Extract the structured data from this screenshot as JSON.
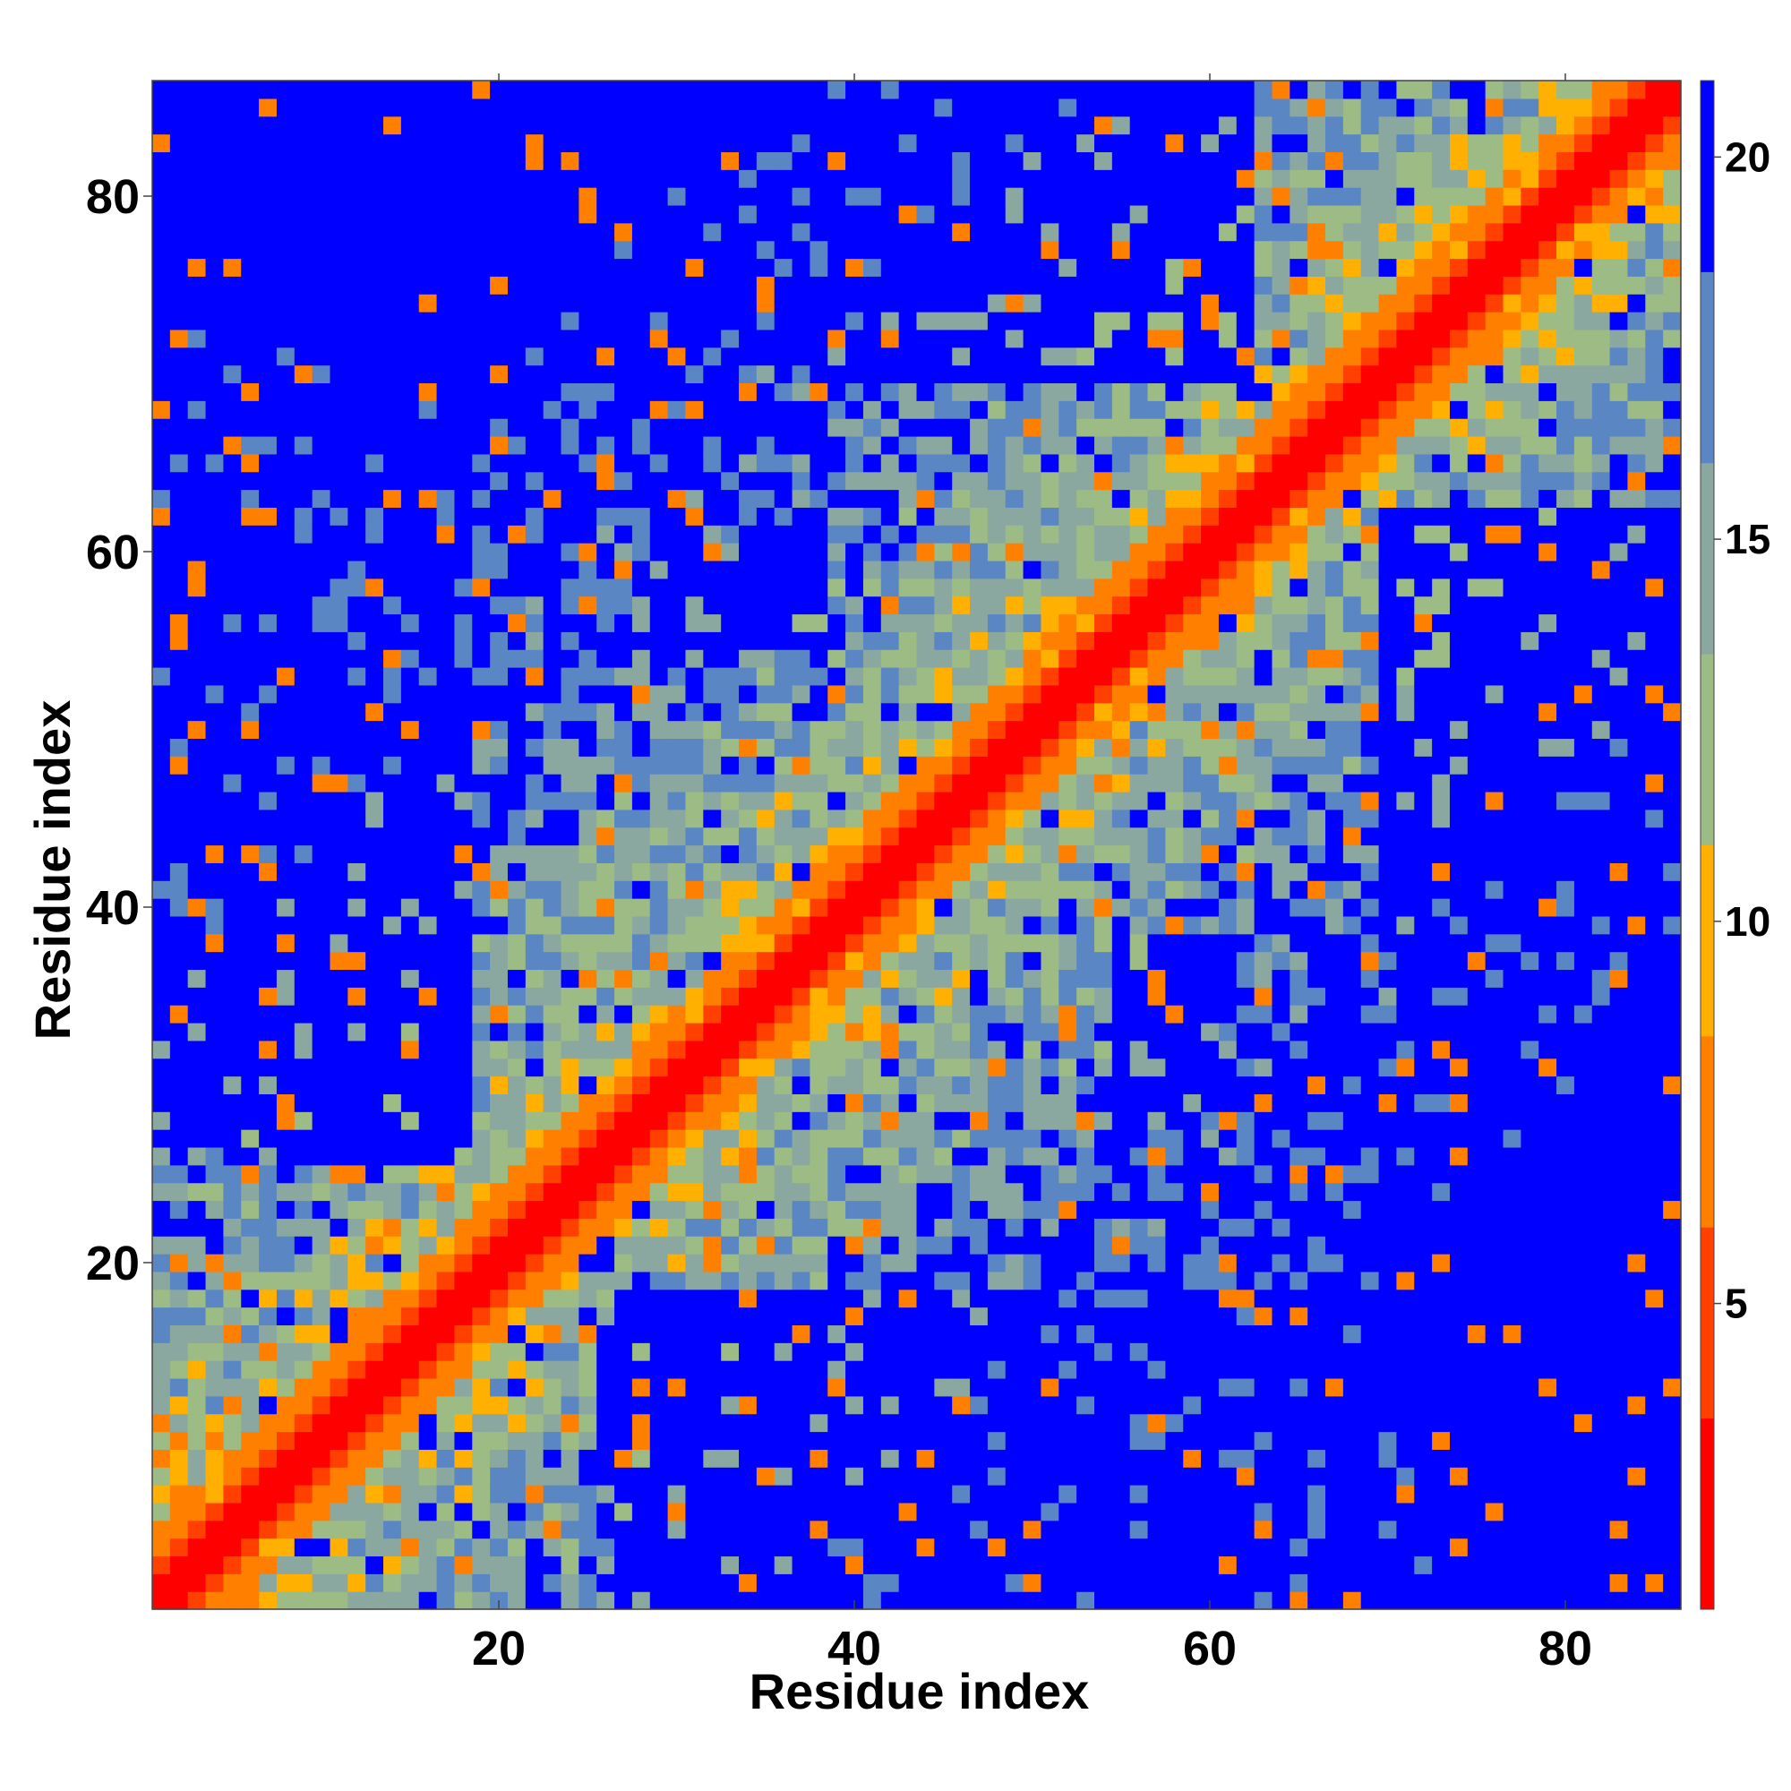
{
  "chart_data": {
    "type": "heatmap",
    "title": "",
    "xlabel": "Residue index",
    "ylabel": "Residue index",
    "n_residues": 86,
    "xlim": [
      1,
      86
    ],
    "ylim": [
      1,
      86
    ],
    "x_ticks": [
      20,
      40,
      60,
      80
    ],
    "x_tick_labels": [
      "20",
      "40",
      "60",
      "80"
    ],
    "y_ticks": [
      20,
      40,
      60,
      80
    ],
    "y_tick_labels": [
      "20",
      "40",
      "60",
      "80"
    ],
    "colorbar": {
      "range": [
        1,
        21
      ],
      "ticks": [
        5,
        10,
        15,
        20
      ],
      "tick_labels": [
        "5",
        "10",
        "15",
        "20"
      ],
      "placement": "right",
      "colors": [
        "#ff0000",
        "#ff4000",
        "#ff8000",
        "#ffb000",
        "#9dbb85",
        "#8aa8a0",
        "#5a87c4",
        "#0000ff"
      ]
    },
    "blocks": [
      {
        "x": [
          8,
          16
        ],
        "y": [
          26,
          56
        ],
        "value": 21
      },
      {
        "x": [
          27,
          52
        ],
        "y": [
          1,
          18
        ],
        "value": 21
      },
      {
        "x": [
          72,
          86
        ],
        "y": [
          36,
          62
        ],
        "value": 21
      },
      {
        "x": [
          38,
          62
        ],
        "y": [
          70,
          86
        ],
        "value": 21
      },
      {
        "x": [
          1,
          8
        ],
        "y": [
          35,
          62
        ],
        "value": 20
      },
      {
        "x": [
          10,
          17
        ],
        "y": [
          78,
          86
        ],
        "value": 20
      },
      {
        "x": [
          80,
          86
        ],
        "y": [
          1,
          16
        ],
        "value": 20
      },
      {
        "x": [
          29,
          38
        ],
        "y": [
          55,
          60
        ],
        "value": 21
      },
      {
        "x": [
          60,
          72
        ],
        "y": [
          1,
          10
        ],
        "value": 19
      }
    ]
  }
}
